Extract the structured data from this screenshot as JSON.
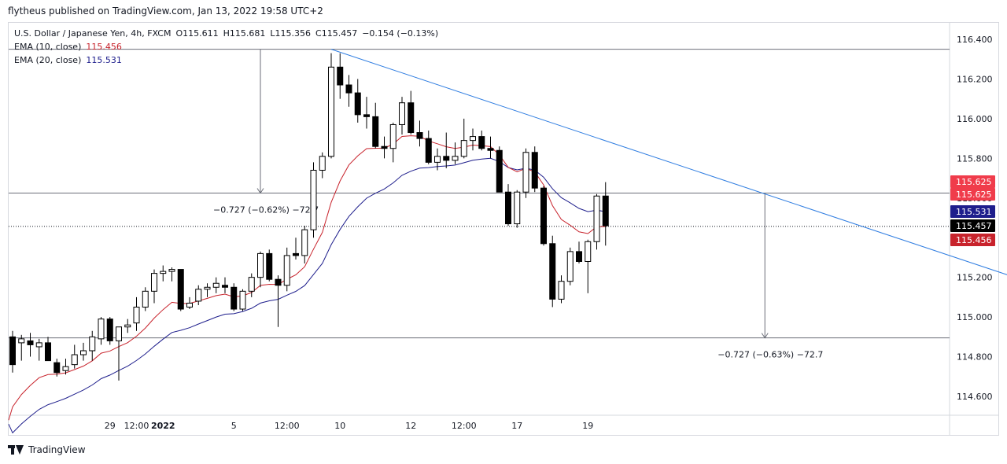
{
  "header": {
    "published": "flytheus published on TradingView.com, Jan 13, 2022 19:58 UTC+2"
  },
  "legend": {
    "symbol": "U.S. Dollar / Japanese Yen, 4h, FXCM",
    "open_label": "O",
    "open": "115.611",
    "high_label": "H",
    "high": "115.681",
    "low_label": "L",
    "low": "115.356",
    "close_label": "C",
    "close": "115.457",
    "change": "−0.154 (−0.13%)",
    "ema10_label": "EMA (10, close)",
    "ema10_value": "115.456",
    "ema20_label": "EMA (20, close)",
    "ema20_value": "115.531"
  },
  "footer": {
    "brand": "TradingView"
  },
  "colors": {
    "ema10": "#c8232c",
    "ema20": "#1e1e8c",
    "trendline": "#2f7de1",
    "candle": "#000000",
    "last_price_bg": "#000000",
    "high_label_bg": "#f03c4b",
    "ema20_bg": "#1e1e8c",
    "ema10_bg": "#c8232c"
  },
  "chart_data": {
    "type": "candlestick",
    "symbol": "USDJPY",
    "timeframe": "4h",
    "ylim": [
      114.47,
      116.46
    ],
    "y_ticks": [
      "114.600",
      "114.800",
      "115.000",
      "115.200",
      "115.400",
      "115.600",
      "115.800",
      "116.000",
      "116.200",
      "116.400"
    ],
    "x_labels": [
      "29",
      "12:00",
      "2022",
      "5",
      "12:00",
      "10",
      "12",
      "12:00",
      "17",
      "19"
    ],
    "x_label_bars": [
      11,
      14,
      17,
      25,
      31,
      37,
      45,
      51,
      57,
      65
    ],
    "candles": [
      [
        114.9,
        114.93,
        114.72,
        114.76
      ],
      [
        114.87,
        114.91,
        114.78,
        114.89
      ],
      [
        114.88,
        114.92,
        114.8,
        114.86
      ],
      [
        114.85,
        114.89,
        114.78,
        114.87
      ],
      [
        114.87,
        114.9,
        114.78,
        114.78
      ],
      [
        114.77,
        114.79,
        114.7,
        114.72
      ],
      [
        114.73,
        114.79,
        114.71,
        114.75
      ],
      [
        114.76,
        114.86,
        114.74,
        114.81
      ],
      [
        114.81,
        114.87,
        114.78,
        114.83
      ],
      [
        114.83,
        114.93,
        114.78,
        114.9
      ],
      [
        114.89,
        115.0,
        114.86,
        114.99
      ],
      [
        114.99,
        115.0,
        114.86,
        114.88
      ],
      [
        114.88,
        114.95,
        114.68,
        114.95
      ],
      [
        114.95,
        114.99,
        114.92,
        114.96
      ],
      [
        114.97,
        115.1,
        114.93,
        115.05
      ],
      [
        115.05,
        115.15,
        115.03,
        115.13
      ],
      [
        115.13,
        115.24,
        115.07,
        115.22
      ],
      [
        115.22,
        115.26,
        115.18,
        115.23
      ],
      [
        115.23,
        115.25,
        115.18,
        115.24
      ],
      [
        115.24,
        115.24,
        115.03,
        115.04
      ],
      [
        115.05,
        115.1,
        115.04,
        115.07
      ],
      [
        115.08,
        115.16,
        115.06,
        115.14
      ],
      [
        115.14,
        115.17,
        115.1,
        115.15
      ],
      [
        115.15,
        115.2,
        115.12,
        115.17
      ],
      [
        115.16,
        115.2,
        115.12,
        115.15
      ],
      [
        115.15,
        115.17,
        115.03,
        115.04
      ],
      [
        115.04,
        115.14,
        115.03,
        115.13
      ],
      [
        115.13,
        115.22,
        115.1,
        115.2
      ],
      [
        115.2,
        115.33,
        115.15,
        115.32
      ],
      [
        115.32,
        115.34,
        115.18,
        115.19
      ],
      [
        115.19,
        115.21,
        114.95,
        115.16
      ],
      [
        115.16,
        115.35,
        115.13,
        115.31
      ],
      [
        115.32,
        115.4,
        115.29,
        115.31
      ],
      [
        115.31,
        115.46,
        115.27,
        115.44
      ],
      [
        115.44,
        115.78,
        115.4,
        115.74
      ],
      [
        115.74,
        115.83,
        115.7,
        115.81
      ],
      [
        115.81,
        116.33,
        115.8,
        116.26
      ],
      [
        116.26,
        116.33,
        116.1,
        116.17
      ],
      [
        116.17,
        116.22,
        116.06,
        116.13
      ],
      [
        116.13,
        116.2,
        115.98,
        116.02
      ],
      [
        116.02,
        116.11,
        115.95,
        116.01
      ],
      [
        116.01,
        116.08,
        115.85,
        115.86
      ],
      [
        115.86,
        115.91,
        115.8,
        115.85
      ],
      [
        115.85,
        115.98,
        115.78,
        115.97
      ],
      [
        115.97,
        116.11,
        115.92,
        116.08
      ],
      [
        116.08,
        116.14,
        115.92,
        115.93
      ],
      [
        115.93,
        115.99,
        115.86,
        115.9
      ],
      [
        115.9,
        115.94,
        115.77,
        115.78
      ],
      [
        115.78,
        115.85,
        115.74,
        115.81
      ],
      [
        115.81,
        115.93,
        115.75,
        115.79
      ],
      [
        115.79,
        115.88,
        115.77,
        115.81
      ],
      [
        115.81,
        116.0,
        115.8,
        115.89
      ],
      [
        115.89,
        115.95,
        115.84,
        115.91
      ],
      [
        115.91,
        115.94,
        115.84,
        115.85
      ],
      [
        115.85,
        115.91,
        115.8,
        115.84
      ],
      [
        115.84,
        115.86,
        115.63,
        115.63
      ],
      [
        115.63,
        115.67,
        115.46,
        115.47
      ],
      [
        115.47,
        115.64,
        115.45,
        115.63
      ],
      [
        115.63,
        115.85,
        115.6,
        115.83
      ],
      [
        115.83,
        115.86,
        115.63,
        115.65
      ],
      [
        115.65,
        115.66,
        115.36,
        115.37
      ],
      [
        115.37,
        115.41,
        115.05,
        115.09
      ],
      [
        115.09,
        115.21,
        115.07,
        115.18
      ],
      [
        115.18,
        115.35,
        115.16,
        115.33
      ],
      [
        115.33,
        115.38,
        115.27,
        115.28
      ],
      [
        115.28,
        115.39,
        115.12,
        115.38
      ],
      [
        115.38,
        115.62,
        115.34,
        115.61
      ],
      [
        115.61,
        115.68,
        115.36,
        115.46
      ]
    ],
    "ema10_end": 115.456,
    "ema20_end": 115.531,
    "trendline": {
      "from_bar": 36,
      "from_price": 116.35,
      "to_bar": 124,
      "to_price": 115.04
    },
    "horizontal_lines": [
      116.35,
      115.625,
      114.895
    ],
    "last_price_dotted": 115.457,
    "measure_left": {
      "bar": 28,
      "from": 116.35,
      "to": 115.625,
      "label": "−0.727 (−0.62%) −72.7"
    },
    "measure_right": {
      "bar": 85,
      "from": 115.625,
      "to": 114.895,
      "label": "−0.727 (−0.63%) −72.7"
    },
    "price_labels": [
      {
        "text": "115.625",
        "price": 115.625,
        "role": "high_label_bg",
        "slot": 0
      },
      {
        "text": "115.625",
        "price": 115.625,
        "role": "high_label_bg",
        "slot": 1
      },
      {
        "text": "115.531",
        "price": 115.531,
        "role": "ema20_bg",
        "slot": 2
      },
      {
        "text": "115.457",
        "price": 115.457,
        "role": "last_price_bg",
        "slot": 3
      },
      {
        "text": "115.456",
        "price": 115.456,
        "role": "ema10_bg",
        "slot": 4
      }
    ]
  }
}
